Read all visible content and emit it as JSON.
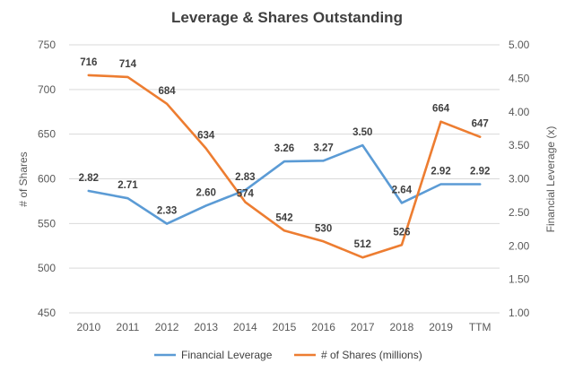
{
  "chart_data": {
    "type": "line",
    "title": "Leverage & Shares Outstanding",
    "categories": [
      "2010",
      "2011",
      "2012",
      "2013",
      "2014",
      "2015",
      "2016",
      "2017",
      "2018",
      "2019",
      "TTM"
    ],
    "y_left": {
      "label": "# of Shares",
      "range": [
        450,
        750
      ],
      "ticks": [
        "450",
        "500",
        "550",
        "600",
        "650",
        "700",
        "750"
      ]
    },
    "y_right": {
      "label": "Financial Leverage (x)",
      "range": [
        1.0,
        5.0
      ],
      "ticks": [
        "1.00",
        "1.50",
        "2.00",
        "2.50",
        "3.00",
        "3.50",
        "4.00",
        "4.50",
        "5.00"
      ]
    },
    "grid": true,
    "legend_position": "bottom",
    "series": [
      {
        "name": "Financial Leverage",
        "axis": "right",
        "color": "#5b9bd5",
        "values": [
          2.82,
          2.71,
          2.33,
          2.6,
          2.83,
          3.26,
          3.27,
          3.5,
          2.64,
          2.92,
          2.92
        ],
        "labels": [
          "2.82",
          "2.71",
          "2.33",
          "2.60",
          "2.83",
          "3.26",
          "3.27",
          "3.50",
          "2.64",
          "2.92",
          "2.92"
        ]
      },
      {
        "name": "# of Shares (millions)",
        "axis": "left",
        "color": "#ed7d31",
        "values": [
          716,
          714,
          684,
          634,
          574,
          542,
          530,
          512,
          526,
          664,
          647
        ],
        "labels": [
          "716",
          "714",
          "684",
          "634",
          "574",
          "542",
          "530",
          "512",
          "526",
          "664",
          "647"
        ]
      }
    ]
  }
}
